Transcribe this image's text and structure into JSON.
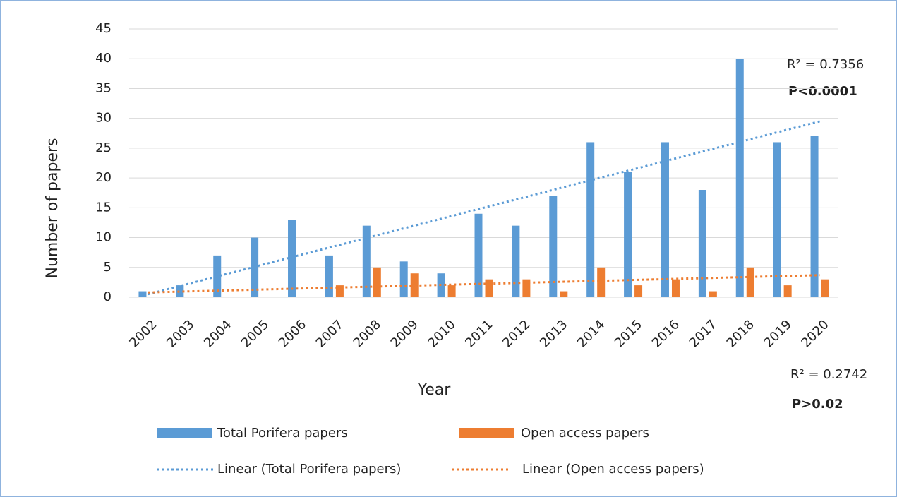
{
  "chart_data": {
    "type": "bar",
    "x_label": "Year",
    "y_label": "Number of papers",
    "categories": [
      "2002",
      "2003",
      "2004",
      "2005",
      "2006",
      "2007",
      "2008",
      "2009",
      "2010",
      "2011",
      "2012",
      "2013",
      "2014",
      "2015",
      "2016",
      "2017",
      "2018",
      "2019",
      "2020"
    ],
    "series": [
      {
        "name": "Total Porifera papers",
        "color": "#5b9bd5",
        "values": [
          1,
          2,
          7,
          10,
          13,
          7,
          12,
          6,
          4,
          14,
          12,
          17,
          26,
          21,
          26,
          18,
          40,
          26,
          27
        ],
        "trend": {
          "name": "Linear (Total Porifera papers)",
          "start": 0.5,
          "end": 29.5
        }
      },
      {
        "name": "Open access papers",
        "color": "#ed7d31",
        "values": [
          0,
          0,
          0,
          0,
          0,
          2,
          5,
          4,
          2,
          3,
          3,
          1,
          5,
          2,
          3,
          1,
          5,
          2,
          3
        ],
        "trend": {
          "name": "Linear (Open access papers)",
          "start": 0.8,
          "end": 3.7
        }
      }
    ],
    "annotations": [
      "R² = 0.7356",
      "P<0.0001",
      "R² = 0.2742",
      "P>0.02"
    ],
    "ylim": [
      0,
      45
    ],
    "yticks": [
      0,
      5,
      10,
      15,
      20,
      25,
      30,
      35,
      40,
      45
    ],
    "grid": true
  }
}
